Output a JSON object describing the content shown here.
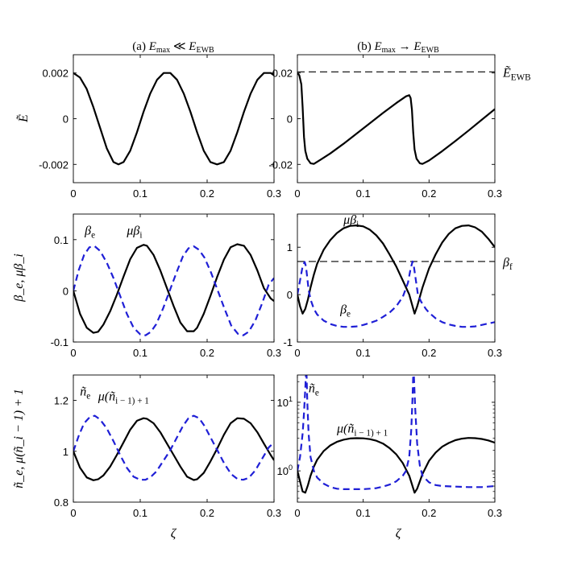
{
  "colors": {
    "black": "#000000",
    "blue": "#1f1fd6"
  },
  "column_titles": [
    "(a) E_max ≪ E_EWB",
    "(b) E_max → E_EWB"
  ],
  "row_labels": [
    "Ẽ",
    "β_e, μβ_i",
    "ñ_e, μ(ñ_i − 1) + 1"
  ],
  "xlabel": "ζ",
  "chart_data": [
    {
      "id": "a1",
      "type": "line",
      "xlim": [
        0,
        0.3
      ],
      "ylim": [
        -0.0028,
        0.0028
      ],
      "xticks": [
        "0",
        "0.1",
        "0.2",
        "0.3"
      ],
      "xtick_vals": [
        0,
        0.1,
        0.2,
        0.3
      ],
      "yticks": [
        "0.002",
        "0",
        "-0.002"
      ],
      "ytick_vals": [
        0.002,
        0,
        -0.002
      ],
      "series": [
        {
          "color": "black",
          "dash": false,
          "x": [
            0,
            0.01,
            0.02,
            0.03,
            0.04,
            0.05,
            0.06,
            0.0675,
            0.075,
            0.085,
            0.095,
            0.105,
            0.115,
            0.125,
            0.135,
            0.145,
            0.155,
            0.165,
            0.175,
            0.185,
            0.195,
            0.205,
            0.215,
            0.225,
            0.235,
            0.245,
            0.255,
            0.265,
            0.275,
            0.285,
            0.295,
            0.3
          ],
          "y": [
            0.002,
            0.0018,
            0.0013,
            0.0005,
            -0.0004,
            -0.0013,
            -0.0019,
            -0.002,
            -0.0019,
            -0.0014,
            -0.0006,
            0.0003,
            0.0011,
            0.0017,
            0.002,
            0.002,
            0.0017,
            0.0011,
            0.0003,
            -0.0006,
            -0.0014,
            -0.0019,
            -0.002,
            -0.0019,
            -0.0014,
            -0.0006,
            0.0003,
            0.0011,
            0.0017,
            0.002,
            0.002,
            0.0019
          ]
        }
      ]
    },
    {
      "id": "b1",
      "type": "line",
      "xlim": [
        0,
        0.3
      ],
      "ylim": [
        -0.028,
        0.028
      ],
      "xticks": [
        "0",
        "0.1",
        "0.2",
        "0.3"
      ],
      "xtick_vals": [
        0,
        0.1,
        0.2,
        0.3
      ],
      "yticks": [
        "0.02",
        "0",
        "-0.02"
      ],
      "ytick_vals": [
        0.02,
        0,
        -0.02
      ],
      "hline": {
        "y": 0.0205,
        "label": "Ẽ_EWB"
      },
      "series": [
        {
          "color": "black",
          "dash": false,
          "x": [
            0,
            0.003,
            0.006,
            0.008,
            0.01,
            0.012,
            0.015,
            0.02,
            0.025,
            0.035,
            0.05,
            0.07,
            0.09,
            0.11,
            0.13,
            0.15,
            0.165,
            0.17,
            0.172,
            0.174,
            0.176,
            0.178,
            0.181,
            0.186,
            0.19,
            0.2,
            0.22,
            0.24,
            0.26,
            0.28,
            0.3
          ],
          "y": [
            0.02,
            0.019,
            0.015,
            0.005,
            -0.008,
            -0.014,
            -0.0175,
            -0.0195,
            -0.0198,
            -0.018,
            -0.0152,
            -0.011,
            -0.0065,
            -0.002,
            0.0025,
            0.0068,
            0.0098,
            0.0103,
            0.009,
            0.004,
            -0.006,
            -0.0135,
            -0.0175,
            -0.0195,
            -0.0198,
            -0.0183,
            -0.0142,
            -0.0098,
            -0.0052,
            -0.0005,
            0.0042
          ]
        }
      ]
    },
    {
      "id": "a2",
      "type": "line",
      "xlim": [
        0,
        0.3
      ],
      "ylim": [
        -0.1,
        0.15
      ],
      "xticks": [
        "0",
        "0.1",
        "0.2",
        "0.3"
      ],
      "xtick_vals": [
        0,
        0.1,
        0.2,
        0.3
      ],
      "yticks": [
        "0.1",
        "0",
        "-0.1"
      ],
      "ytick_vals": [
        0.1,
        0,
        -0.1
      ],
      "annotations": [
        {
          "text": "β_e",
          "color": "blue",
          "x": 0.017,
          "y": 0.11
        },
        {
          "text": "μβ_i",
          "color": "black",
          "x": 0.08,
          "y": 0.11
        }
      ],
      "series": [
        {
          "name": "μβ_i",
          "color": "black",
          "dash": false,
          "x": [
            0,
            0.01,
            0.02,
            0.03,
            0.037,
            0.045,
            0.055,
            0.065,
            0.075,
            0.085,
            0.095,
            0.105,
            0.11,
            0.12,
            0.13,
            0.14,
            0.15,
            0.16,
            0.17,
            0.18,
            0.185,
            0.195,
            0.205,
            0.215,
            0.225,
            0.235,
            0.245,
            0.255,
            0.265,
            0.275,
            0.285,
            0.295,
            0.3
          ],
          "y": [
            0,
            -0.045,
            -0.072,
            -0.082,
            -0.08,
            -0.066,
            -0.04,
            -0.008,
            0.028,
            0.062,
            0.084,
            0.09,
            0.088,
            0.07,
            0.04,
            0.005,
            -0.03,
            -0.062,
            -0.079,
            -0.079,
            -0.072,
            -0.045,
            -0.01,
            0.027,
            0.061,
            0.085,
            0.091,
            0.088,
            0.07,
            0.04,
            0.005,
            -0.015,
            -0.02
          ]
        },
        {
          "name": "β_e",
          "color": "blue",
          "dash": true,
          "x": [
            0,
            0.008,
            0.016,
            0.024,
            0.032,
            0.04,
            0.05,
            0.06,
            0.07,
            0.08,
            0.09,
            0.1,
            0.108,
            0.116,
            0.124,
            0.134,
            0.144,
            0.154,
            0.164,
            0.172,
            0.18,
            0.188,
            0.196,
            0.206,
            0.216,
            0.226,
            0.236,
            0.246,
            0.254,
            0.262,
            0.272,
            0.282,
            0.292,
            0.3
          ],
          "y": [
            0,
            0.04,
            0.07,
            0.085,
            0.087,
            0.078,
            0.055,
            0.025,
            -0.01,
            -0.045,
            -0.072,
            -0.085,
            -0.087,
            -0.08,
            -0.065,
            -0.035,
            0,
            0.035,
            0.068,
            0.083,
            0.087,
            0.08,
            0.065,
            0.035,
            0,
            -0.035,
            -0.068,
            -0.084,
            -0.087,
            -0.08,
            -0.058,
            -0.025,
            0.012,
            0.025
          ]
        }
      ]
    },
    {
      "id": "b2",
      "type": "line",
      "xlim": [
        0,
        0.3
      ],
      "ylim": [
        -1,
        1.7
      ],
      "xticks": [
        "0",
        "0.1",
        "0.2",
        "0.3"
      ],
      "xtick_vals": [
        0,
        0.1,
        0.2,
        0.3
      ],
      "yticks": [
        "1",
        "0",
        "-1"
      ],
      "ytick_vals": [
        1,
        0,
        -1
      ],
      "hline": {
        "y": 0.7,
        "label": "β_f"
      },
      "annotations": [
        {
          "text": "μβ_i",
          "color": "black",
          "x": 0.07,
          "y": 1.5
        },
        {
          "text": "β_e",
          "color": "blue",
          "x": 0.065,
          "y": -0.4
        }
      ],
      "series": [
        {
          "name": "μβ_i",
          "color": "black",
          "dash": false,
          "x": [
            0,
            0.004,
            0.008,
            0.012,
            0.016,
            0.02,
            0.025,
            0.03,
            0.04,
            0.05,
            0.06,
            0.07,
            0.08,
            0.09,
            0.1,
            0.11,
            0.12,
            0.13,
            0.14,
            0.15,
            0.16,
            0.17,
            0.178,
            0.182,
            0.186,
            0.19,
            0.2,
            0.21,
            0.22,
            0.23,
            0.24,
            0.25,
            0.26,
            0.27,
            0.28,
            0.29,
            0.3
          ],
          "y": [
            0,
            -0.25,
            -0.4,
            -0.3,
            -0.1,
            0.15,
            0.42,
            0.65,
            0.95,
            1.15,
            1.3,
            1.4,
            1.45,
            1.46,
            1.44,
            1.37,
            1.25,
            1.08,
            0.85,
            0.6,
            0.3,
            0.0,
            -0.4,
            -0.25,
            -0.05,
            0.15,
            0.55,
            0.85,
            1.1,
            1.28,
            1.4,
            1.45,
            1.46,
            1.42,
            1.33,
            1.18,
            1.0
          ]
        },
        {
          "name": "β_e",
          "color": "blue",
          "dash": true,
          "x": [
            0,
            0.004,
            0.008,
            0.011,
            0.013,
            0.015,
            0.017,
            0.02,
            0.025,
            0.03,
            0.04,
            0.05,
            0.06,
            0.07,
            0.08,
            0.09,
            0.1,
            0.11,
            0.12,
            0.13,
            0.14,
            0.15,
            0.16,
            0.168,
            0.172,
            0.175,
            0.177,
            0.18,
            0.183,
            0.188,
            0.195,
            0.2,
            0.21,
            0.22,
            0.23,
            0.24,
            0.25,
            0.26,
            0.27,
            0.28,
            0.29,
            0.3
          ],
          "y": [
            0,
            0.3,
            0.6,
            0.69,
            0.6,
            0.35,
            0.1,
            -0.1,
            -0.3,
            -0.42,
            -0.55,
            -0.62,
            -0.66,
            -0.68,
            -0.68,
            -0.67,
            -0.64,
            -0.6,
            -0.55,
            -0.47,
            -0.38,
            -0.25,
            -0.05,
            0.25,
            0.55,
            0.7,
            0.6,
            0.3,
            0.0,
            -0.15,
            -0.3,
            -0.38,
            -0.5,
            -0.58,
            -0.63,
            -0.66,
            -0.68,
            -0.68,
            -0.67,
            -0.64,
            -0.61,
            -0.58
          ]
        }
      ]
    },
    {
      "id": "a3",
      "type": "line",
      "xlim": [
        0,
        0.3
      ],
      "ylim": [
        0.8,
        1.3
      ],
      "xticks": [
        "0",
        "0.1",
        "0.2",
        "0.3"
      ],
      "xtick_vals": [
        0,
        0.1,
        0.2,
        0.3
      ],
      "yticks": [
        "1.2",
        "1",
        "0.8"
      ],
      "ytick_vals": [
        1.2,
        1.0,
        0.8
      ],
      "annotations": [
        {
          "text": "ñ_e",
          "color": "blue",
          "x": 0.01,
          "y": 1.22
        },
        {
          "text": "μ(ñ_i − 1) + 1",
          "color": "black",
          "x": 0.037,
          "y": 1.2
        }
      ],
      "series": [
        {
          "name": "μ(ñ_i − 1) + 1",
          "color": "black",
          "dash": false,
          "x": [
            0,
            0.01,
            0.02,
            0.03,
            0.037,
            0.045,
            0.055,
            0.065,
            0.075,
            0.085,
            0.095,
            0.105,
            0.11,
            0.12,
            0.13,
            0.14,
            0.15,
            0.16,
            0.17,
            0.18,
            0.185,
            0.195,
            0.205,
            0.215,
            0.225,
            0.235,
            0.245,
            0.255,
            0.265,
            0.275,
            0.285,
            0.295,
            0.3
          ],
          "y": [
            1.0,
            0.935,
            0.897,
            0.886,
            0.89,
            0.905,
            0.94,
            0.985,
            1.035,
            1.085,
            1.12,
            1.13,
            1.128,
            1.11,
            1.075,
            1.03,
            0.985,
            0.94,
            0.9,
            0.887,
            0.89,
            0.915,
            0.96,
            1.01,
            1.065,
            1.11,
            1.13,
            1.128,
            1.11,
            1.075,
            1.03,
            0.985,
            0.965
          ]
        },
        {
          "name": "ñ_e",
          "color": "blue",
          "dash": true,
          "x": [
            0,
            0.008,
            0.016,
            0.024,
            0.032,
            0.04,
            0.05,
            0.06,
            0.07,
            0.08,
            0.09,
            0.1,
            0.108,
            0.116,
            0.124,
            0.134,
            0.144,
            0.154,
            0.164,
            0.172,
            0.18,
            0.188,
            0.196,
            0.206,
            0.216,
            0.226,
            0.236,
            0.246,
            0.254,
            0.262,
            0.272,
            0.282,
            0.292,
            0.3
          ],
          "y": [
            1.0,
            1.06,
            1.11,
            1.133,
            1.14,
            1.125,
            1.09,
            1.04,
            0.985,
            0.935,
            0.9,
            0.888,
            0.888,
            0.9,
            0.92,
            0.96,
            1.0,
            1.05,
            1.1,
            1.13,
            1.14,
            1.13,
            1.1,
            1.05,
            1.0,
            0.95,
            0.91,
            0.89,
            0.888,
            0.895,
            0.925,
            0.97,
            1.015,
            1.035
          ]
        }
      ]
    },
    {
      "id": "b3",
      "type": "line",
      "yscale": "log",
      "xlim": [
        0,
        0.3
      ],
      "ylim": [
        0.35,
        25
      ],
      "xticks": [
        "0",
        "0.1",
        "0.2",
        "0.3"
      ],
      "xtick_vals": [
        0,
        0.1,
        0.2,
        0.3
      ],
      "yticks": [
        "10^1",
        "10^0"
      ],
      "ytick_vals": [
        10,
        1
      ],
      "annotations": [
        {
          "text": "ñ_e",
          "color": "blue",
          "x": 0.017,
          "y": 14
        },
        {
          "text": "μ(ñ_i − 1) + 1",
          "color": "black",
          "x": 0.06,
          "y": 3.6
        }
      ],
      "series": [
        {
          "name": "μ(ñ_i − 1) + 1",
          "color": "black",
          "dash": false,
          "x": [
            0,
            0.004,
            0.008,
            0.012,
            0.016,
            0.02,
            0.025,
            0.03,
            0.04,
            0.05,
            0.06,
            0.07,
            0.08,
            0.09,
            0.1,
            0.11,
            0.12,
            0.13,
            0.14,
            0.15,
            0.16,
            0.17,
            0.178,
            0.182,
            0.186,
            0.19,
            0.2,
            0.21,
            0.22,
            0.23,
            0.24,
            0.25,
            0.26,
            0.27,
            0.28,
            0.29,
            0.3
          ],
          "y": [
            1.0,
            0.7,
            0.5,
            0.48,
            0.62,
            0.85,
            1.15,
            1.45,
            1.95,
            2.35,
            2.65,
            2.85,
            2.97,
            3.0,
            2.98,
            2.9,
            2.75,
            2.5,
            2.15,
            1.75,
            1.3,
            0.85,
            0.48,
            0.55,
            0.7,
            0.9,
            1.4,
            1.85,
            2.25,
            2.55,
            2.8,
            2.95,
            3.02,
            3.0,
            2.92,
            2.78,
            2.58
          ]
        },
        {
          "name": "ñ_e",
          "color": "blue",
          "dash": true,
          "x": [
            0,
            0.004,
            0.008,
            0.01,
            0.012,
            0.013,
            0.014,
            0.015,
            0.017,
            0.02,
            0.025,
            0.03,
            0.04,
            0.05,
            0.06,
            0.07,
            0.08,
            0.09,
            0.1,
            0.11,
            0.12,
            0.13,
            0.14,
            0.15,
            0.16,
            0.165,
            0.17,
            0.173,
            0.175,
            0.176,
            0.177,
            0.179,
            0.182,
            0.186,
            0.19,
            0.2,
            0.21,
            0.22,
            0.24,
            0.26,
            0.28,
            0.3
          ],
          "y": [
            1.0,
            1.6,
            3.5,
            7,
            16,
            25,
            25,
            10,
            3.5,
            1.6,
            1.0,
            0.8,
            0.65,
            0.58,
            0.55,
            0.54,
            0.54,
            0.54,
            0.54,
            0.55,
            0.56,
            0.59,
            0.63,
            0.7,
            0.85,
            1.0,
            1.6,
            4,
            12,
            25,
            25,
            8,
            2.5,
            1.2,
            0.85,
            0.68,
            0.62,
            0.6,
            0.59,
            0.58,
            0.58,
            0.6
          ]
        }
      ]
    }
  ]
}
